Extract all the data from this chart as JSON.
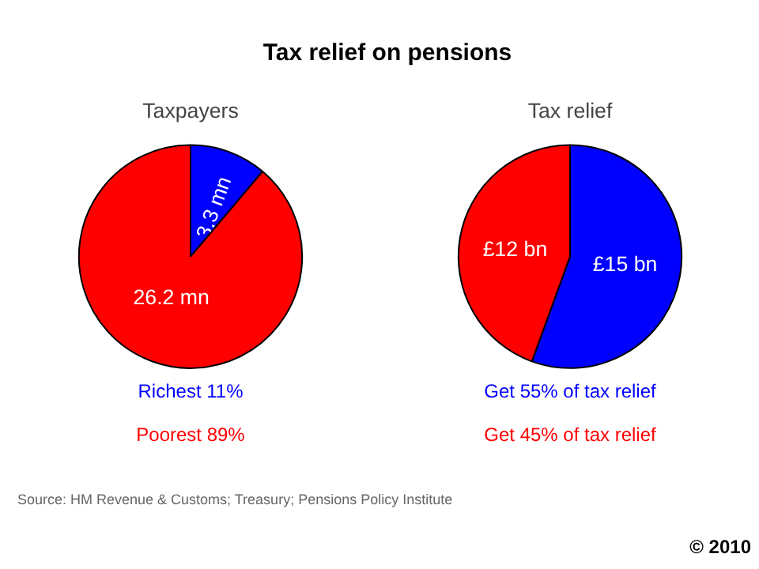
{
  "chart_data": [
    {
      "type": "pie",
      "title": "Taxpayers",
      "categories": [
        null,
        null
      ],
      "values": [
        3.3,
        26.2
      ],
      "colors": [
        "#0000ff",
        "#ff0000"
      ],
      "value_labels": [
        "3.3 mn",
        "26.2 mn"
      ],
      "annotations": [
        "Richest 11%",
        "Poorest 89%",
        "Tax relief on pensions"
      ]
    },
    {
      "type": "pie",
      "title": "Tax relief",
      "categories": [
        null,
        null
      ],
      "values": [
        15,
        12
      ],
      "colors": [
        "#0000ff",
        "#ff0000"
      ],
      "value_labels": [
        "£15 bn",
        "£12 bn"
      ],
      "annotations": [
        "Get 55% of tax relief",
        "Get 45% of tax relief",
        "Source: HM Revenue & Customs; Treasury; Pensions Policy Institute",
        "© 2010"
      ]
    }
  ]
}
